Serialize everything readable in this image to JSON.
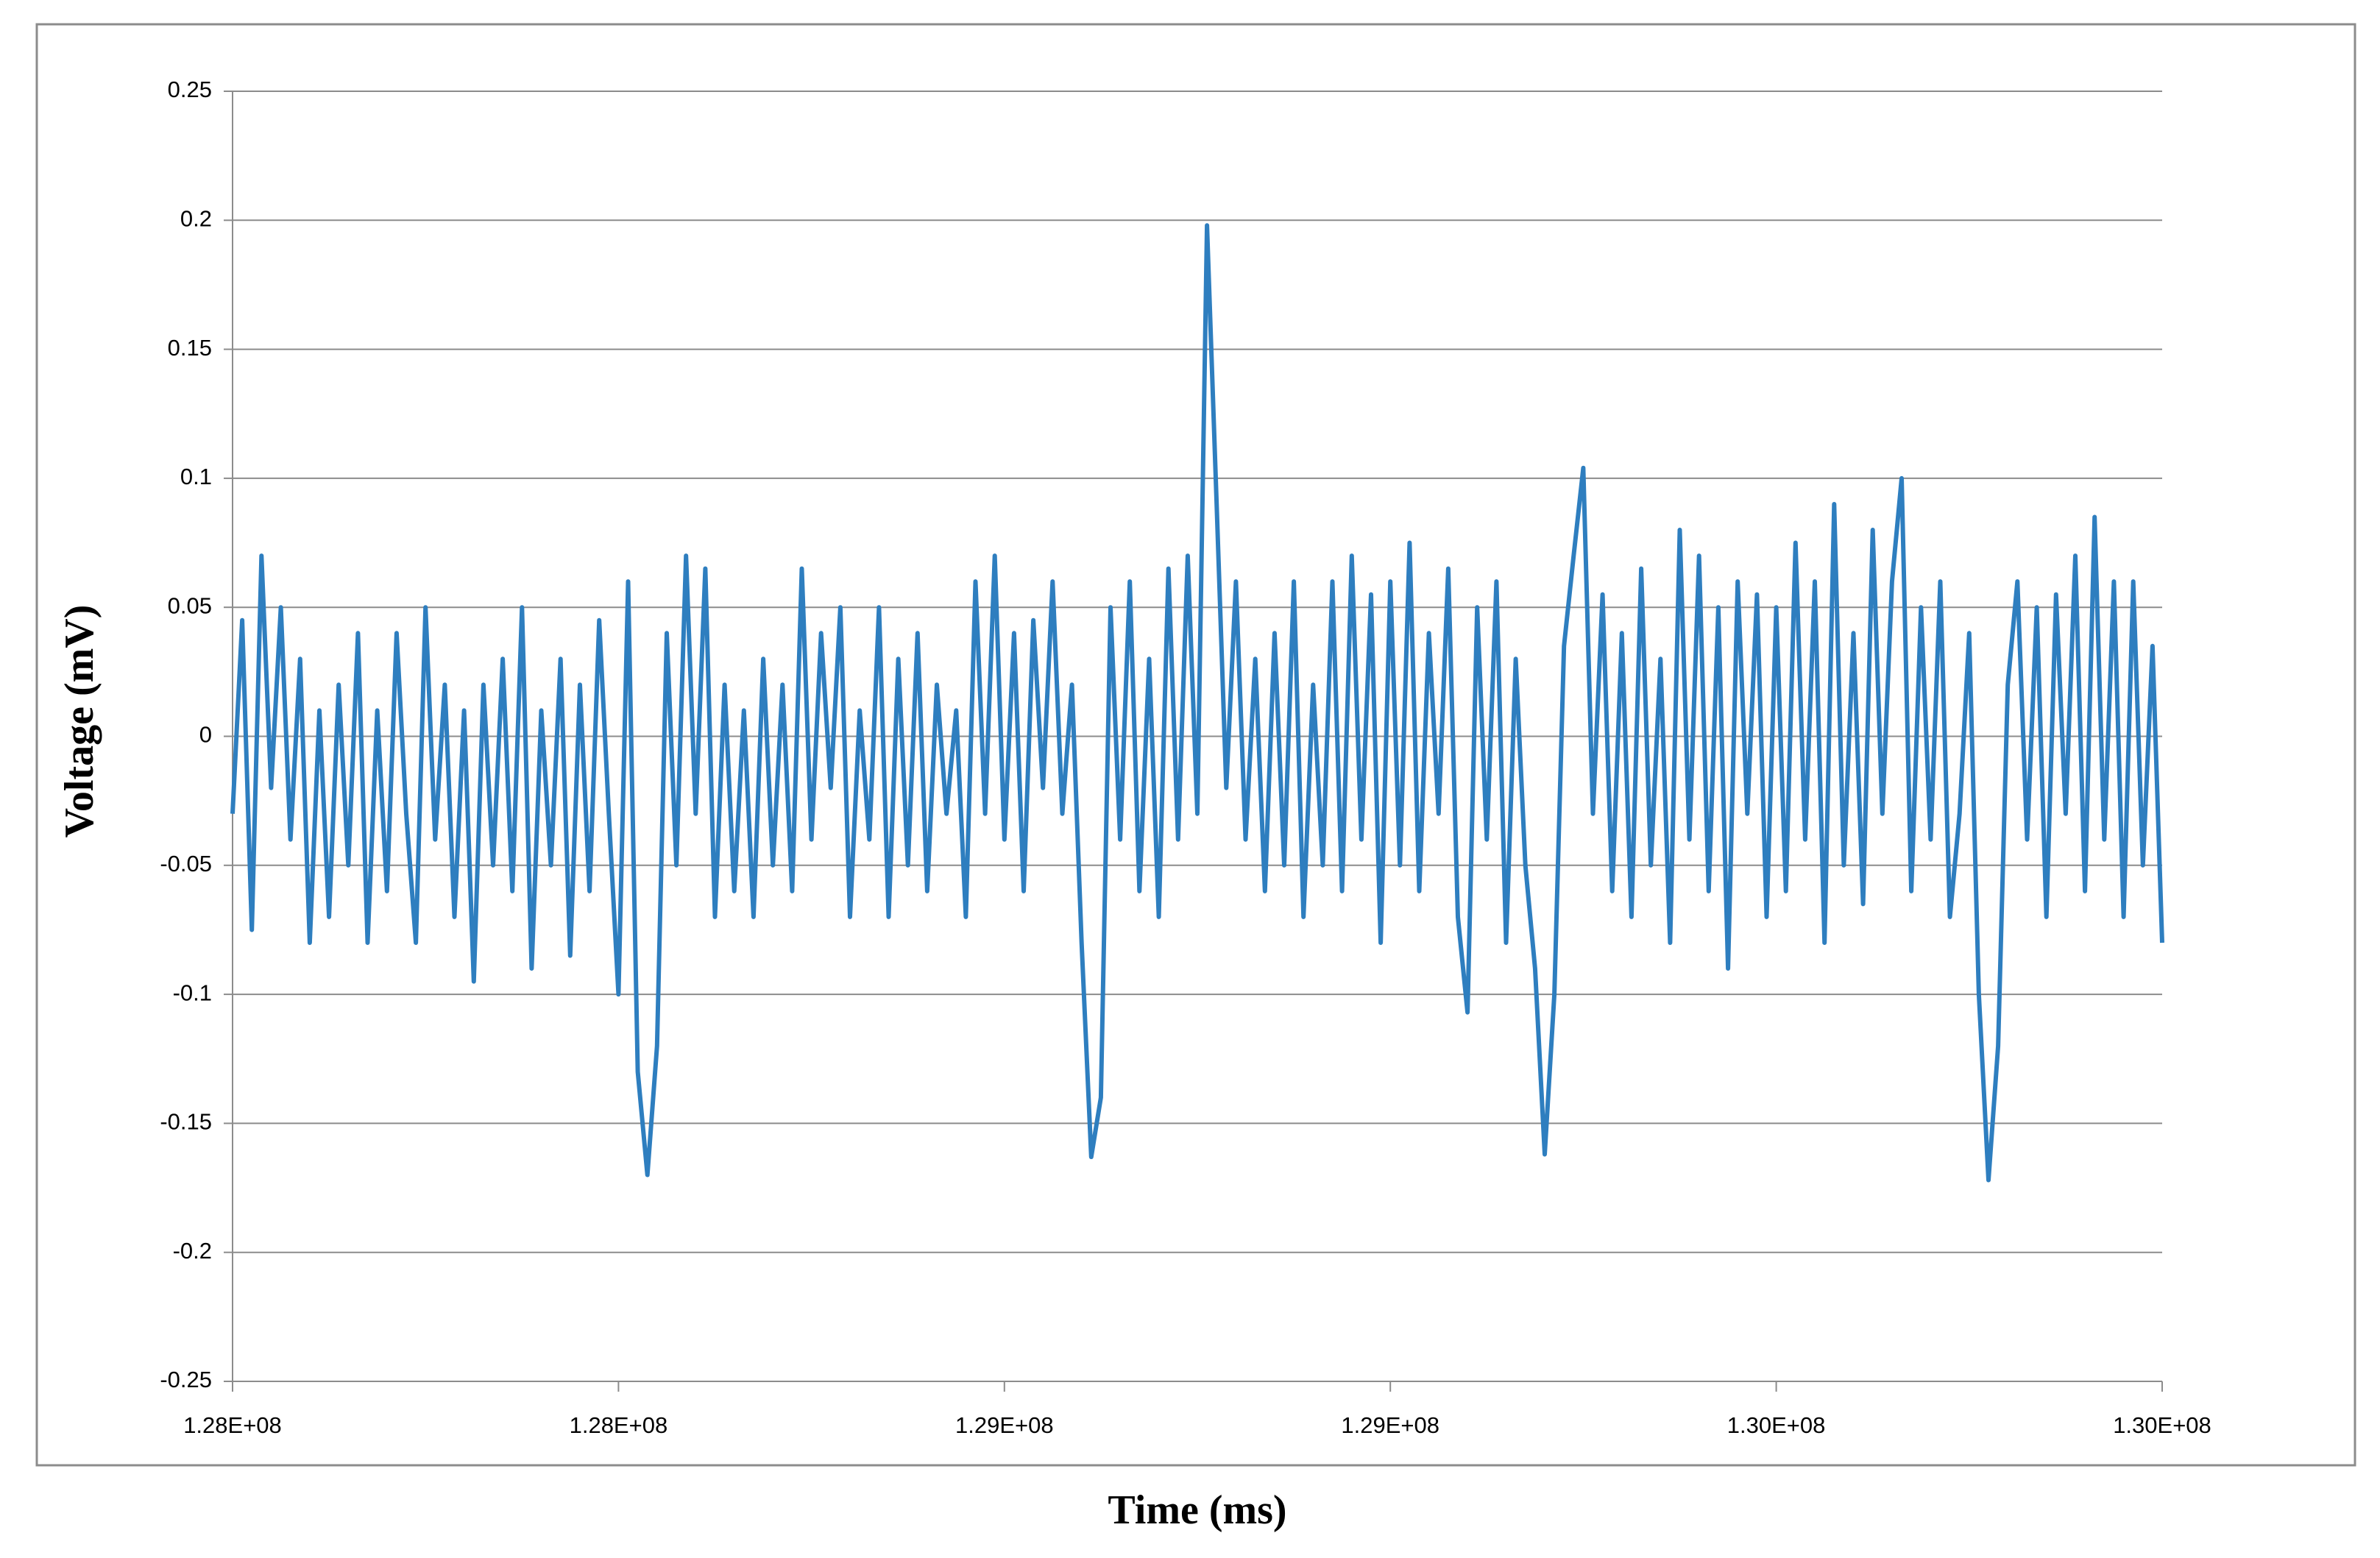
{
  "chart_data": {
    "type": "line",
    "xlabel": "Time (ms)",
    "ylabel": "Voltage (mV)",
    "xlim": [
      128000000,
      130000000
    ],
    "xticks": [
      {
        "value": 128000000,
        "label": "1.28E+08"
      },
      {
        "value": 128400000,
        "label": "1.28E+08"
      },
      {
        "value": 128800000,
        "label": "1.29E+08"
      },
      {
        "value": 129200000,
        "label": "1.29E+08"
      },
      {
        "value": 129600000,
        "label": "1.30E+08"
      },
      {
        "value": 130000000,
        "label": "1.30E+08"
      }
    ],
    "ylim": [
      -0.25,
      0.25
    ],
    "yticks": [
      -0.25,
      -0.2,
      -0.15,
      -0.1,
      -0.05,
      0,
      0.05,
      0.1,
      0.15,
      0.2,
      0.25
    ],
    "grid": true,
    "x": [
      128000000,
      128010000,
      128020000,
      128030000,
      128040000,
      128050000,
      128060000,
      128070000,
      128080000,
      128090000,
      128100000,
      128110000,
      128120000,
      128130000,
      128140000,
      128150000,
      128160000,
      128170000,
      128180000,
      128190000,
      128200000,
      128210000,
      128220000,
      128230000,
      128240000,
      128250000,
      128260000,
      128270000,
      128280000,
      128290000,
      128300000,
      128310000,
      128320000,
      128330000,
      128340000,
      128350000,
      128360000,
      128370000,
      128380000,
      128390000,
      128400000,
      128410000,
      128420000,
      128430000,
      128440000,
      128450000,
      128460000,
      128470000,
      128480000,
      128490000,
      128500000,
      128510000,
      128520000,
      128530000,
      128540000,
      128550000,
      128560000,
      128570000,
      128580000,
      128590000,
      128600000,
      128610000,
      128620000,
      128630000,
      128640000,
      128650000,
      128660000,
      128670000,
      128680000,
      128690000,
      128700000,
      128710000,
      128720000,
      128730000,
      128740000,
      128750000,
      128760000,
      128770000,
      128780000,
      128790000,
      128800000,
      128810000,
      128820000,
      128830000,
      128840000,
      128850000,
      128860000,
      128870000,
      128880000,
      128890000,
      128900000,
      128910000,
      128920000,
      128930000,
      128940000,
      128950000,
      128960000,
      128970000,
      128980000,
      128990000,
      129000000,
      129010000,
      129020000,
      129030000,
      129040000,
      129050000,
      129060000,
      129070000,
      129080000,
      129090000,
      129100000,
      129110000,
      129120000,
      129130000,
      129140000,
      129150000,
      129160000,
      129170000,
      129180000,
      129190000,
      129200000,
      129210000,
      129220000,
      129230000,
      129240000,
      129250000,
      129260000,
      129270000,
      129280000,
      129290000,
      129300000,
      129310000,
      129320000,
      129330000,
      129340000,
      129350000,
      129360000,
      129370000,
      129380000,
      129390000,
      129400000,
      129410000,
      129420000,
      129430000,
      129440000,
      129450000,
      129460000,
      129470000,
      129480000,
      129490000,
      129500000,
      129510000,
      129520000,
      129530000,
      129540000,
      129550000,
      129560000,
      129570000,
      129580000,
      129590000,
      129600000,
      129610000,
      129620000,
      129630000,
      129640000,
      129650000,
      129660000,
      129670000,
      129680000,
      129690000,
      129700000,
      129710000,
      129720000,
      129730000,
      129740000,
      129750000,
      129760000,
      129770000,
      129780000,
      129790000,
      129800000,
      129810000,
      129820000,
      129830000,
      129840000,
      129850000,
      129860000,
      129870000,
      129880000,
      129890000,
      129900000,
      129910000,
      129920000,
      129930000,
      129940000,
      129950000,
      129960000,
      129970000,
      129980000,
      129990000,
      130000000
    ],
    "series": [
      {
        "name": "Voltage",
        "color": "#2e7ebf",
        "values": [
          -0.03,
          0.045,
          -0.075,
          0.07,
          -0.02,
          0.05,
          -0.04,
          0.03,
          -0.08,
          0.01,
          -0.07,
          0.02,
          -0.05,
          0.04,
          -0.08,
          0.01,
          -0.06,
          0.04,
          -0.03,
          -0.08,
          0.05,
          -0.04,
          0.02,
          -0.07,
          0.01,
          -0.095,
          0.02,
          -0.05,
          0.03,
          -0.06,
          0.05,
          -0.09,
          0.01,
          -0.05,
          0.03,
          -0.085,
          0.02,
          -0.06,
          0.045,
          -0.03,
          -0.1,
          0.06,
          -0.13,
          -0.17,
          -0.12,
          0.04,
          -0.05,
          0.07,
          -0.03,
          0.065,
          -0.07,
          0.02,
          -0.06,
          0.01,
          -0.07,
          0.03,
          -0.05,
          0.02,
          -0.06,
          0.065,
          -0.04,
          0.04,
          -0.02,
          0.05,
          -0.07,
          0.01,
          -0.04,
          0.05,
          -0.07,
          0.03,
          -0.05,
          0.04,
          -0.06,
          0.02,
          -0.03,
          0.01,
          -0.07,
          0.06,
          -0.03,
          0.07,
          -0.04,
          0.04,
          -0.06,
          0.045,
          -0.02,
          0.06,
          -0.03,
          0.02,
          -0.08,
          -0.163,
          -0.14,
          0.05,
          -0.04,
          0.06,
          -0.06,
          0.03,
          -0.07,
          0.065,
          -0.04,
          0.07,
          -0.03,
          0.198,
          0.09,
          -0.02,
          0.06,
          -0.04,
          0.03,
          -0.06,
          0.04,
          -0.05,
          0.06,
          -0.07,
          0.02,
          -0.05,
          0.06,
          -0.06,
          0.07,
          -0.04,
          0.055,
          -0.08,
          0.06,
          -0.05,
          0.075,
          -0.06,
          0.04,
          -0.03,
          0.065,
          -0.07,
          -0.107,
          0.05,
          -0.04,
          0.06,
          -0.08,
          0.03,
          -0.05,
          -0.09,
          -0.162,
          -0.1,
          0.035,
          0.07,
          0.104,
          -0.03,
          0.055,
          -0.06,
          0.04,
          -0.07,
          0.065,
          -0.05,
          0.03,
          -0.08,
          0.08,
          -0.04,
          0.07,
          -0.06,
          0.05,
          -0.09,
          0.06,
          -0.03,
          0.055,
          -0.07,
          0.05,
          -0.06,
          0.075,
          -0.04,
          0.06,
          -0.08,
          0.09,
          -0.05,
          0.04,
          -0.065,
          0.08,
          -0.03,
          0.06,
          0.1,
          -0.06,
          0.05,
          -0.04,
          0.06,
          -0.07,
          -0.03,
          0.04,
          -0.1,
          -0.172,
          -0.12,
          0.02,
          0.06,
          -0.04,
          0.05,
          -0.07,
          0.055,
          -0.03,
          0.07,
          -0.06,
          0.085,
          -0.04,
          0.06,
          -0.07,
          0.06,
          -0.05,
          0.035,
          -0.08
        ]
      }
    ]
  }
}
